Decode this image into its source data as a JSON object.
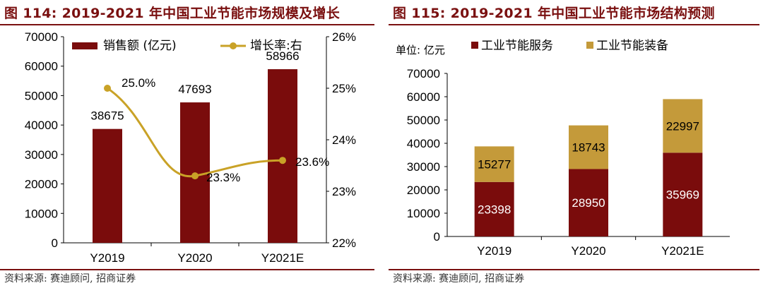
{
  "left": {
    "title": "图 114: 2019-2021 年中国工业节能市场规模及增长",
    "source": "资料来源: 赛迪顾问, 招商证券",
    "colors": {
      "bar": "#7a0c0c",
      "line": "#c9a227",
      "accent": "#7a1010"
    }
  },
  "right": {
    "title": "图 115: 2019-2021 年中国工业节能市场结构预测",
    "source": "资料来源: 赛迪顾问, 招商证券",
    "unit_label": "单位: 亿元",
    "colors": {
      "service": "#7a0c0c",
      "equipment": "#c49a3a",
      "accent": "#7a1010"
    }
  },
  "chart_data": [
    {
      "type": "bar",
      "categories": [
        "Y2019",
        "Y2020",
        "Y2021E"
      ],
      "series": [
        {
          "name": "销售额 (亿元)",
          "type": "bar",
          "axis": "left",
          "values": [
            38675,
            47693,
            58966
          ]
        },
        {
          "name": "增长率:右",
          "type": "line",
          "axis": "right",
          "values": [
            25.0,
            23.3,
            23.6
          ],
          "labels": [
            "25.0%",
            "23.3%",
            "23.6%"
          ]
        }
      ],
      "ylim": [
        0,
        70000
      ],
      "yticks": [
        "0",
        "10000",
        "20000",
        "30000",
        "40000",
        "50000",
        "60000",
        "70000"
      ],
      "y2lim": [
        22,
        26
      ],
      "y2ticks": [
        "22%",
        "23%",
        "24%",
        "25%",
        "26%"
      ],
      "legend": "top"
    },
    {
      "type": "bar",
      "stacked": true,
      "categories": [
        "Y2019",
        "Y2020",
        "Y2021E"
      ],
      "series": [
        {
          "name": "工业节能服务",
          "values": [
            23398,
            28950,
            35969
          ]
        },
        {
          "name": "工业节能装备",
          "values": [
            15277,
            18743,
            22997
          ]
        }
      ],
      "ylim": [
        0,
        70000
      ],
      "yticks": [
        "0",
        "10000",
        "20000",
        "30000",
        "40000",
        "50000",
        "60000",
        "70000"
      ],
      "legend": "top"
    }
  ]
}
